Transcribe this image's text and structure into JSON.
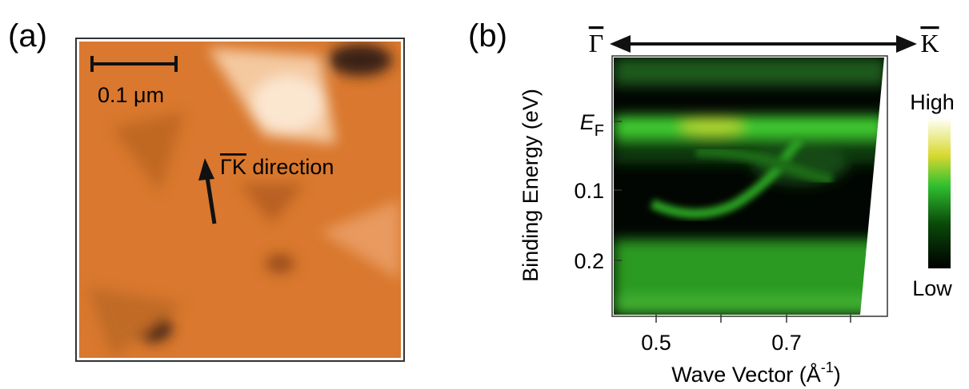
{
  "panel_a": {
    "label": "(a)",
    "scale_bar": "0.1 μm",
    "annotation": "ΓK",
    "annotation_suffix": " direction"
  },
  "panel_b": {
    "label": "(b)",
    "left_point": "Γ",
    "right_point": "K",
    "y_label": "Binding Energy (eV)",
    "y_ticks": [
      {
        "main": "E",
        "sub": "F"
      },
      "0.1",
      "0.2"
    ],
    "x_ticks": [
      "0.5",
      "0.7"
    ],
    "x_label": {
      "main": "Wave Vector (Å",
      "sup": "-1",
      "end": ")"
    },
    "colorbar": {
      "high": "High",
      "low": "Low"
    }
  }
}
